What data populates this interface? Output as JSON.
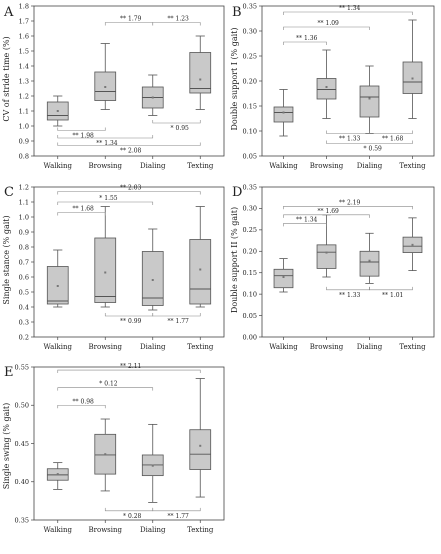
{
  "categories": [
    "Walking",
    "Browsing",
    "Dialing",
    "Texting"
  ],
  "colors": {
    "box_fill": "#c9c9c9",
    "stroke": "#555555",
    "bracket": "#888888",
    "mean": "#777777"
  },
  "chart_data": [
    {
      "type": "box",
      "panel": "A",
      "ylabel": "CV of stride time (%)",
      "ylim": [
        0.8,
        1.8
      ],
      "yticks": [
        "0.8",
        "0.9",
        "1.0",
        "1.1",
        "1.2",
        "1.3",
        "1.4",
        "1.5",
        "1.6",
        "1.7",
        "1.8"
      ],
      "yticks_num": [
        0.8,
        0.9,
        1.0,
        1.1,
        1.2,
        1.3,
        1.4,
        1.5,
        1.6,
        1.7,
        1.8
      ],
      "categories": [
        "Walking",
        "Browsing",
        "Dialing",
        "Texting"
      ],
      "boxes": [
        {
          "min": 1.0,
          "q1": 1.04,
          "median": 1.07,
          "q3": 1.16,
          "max": 1.2,
          "mean": 1.1
        },
        {
          "min": 1.11,
          "q1": 1.17,
          "median": 1.23,
          "q3": 1.36,
          "max": 1.55,
          "mean": 1.26
        },
        {
          "min": 1.07,
          "q1": 1.12,
          "median": 1.19,
          "q3": 1.26,
          "max": 1.34,
          "mean": 1.19
        },
        {
          "min": 1.11,
          "q1": 1.22,
          "median": 1.25,
          "q3": 1.49,
          "max": 1.6,
          "mean": 1.31
        }
      ],
      "brackets": [
        {
          "from": 1,
          "to": 2,
          "y": 1.69,
          "sig": "**",
          "label": "1.79",
          "side": "above"
        },
        {
          "from": 2,
          "to": 3,
          "y": 1.69,
          "sig": "**",
          "label": "1.23",
          "side": "above"
        },
        {
          "from": 2,
          "to": 3,
          "y": 1.02,
          "sig": "*",
          "label": "0.95",
          "side": "below"
        },
        {
          "from": 0,
          "to": 1,
          "y": 0.97,
          "sig": "**",
          "label": "1.98",
          "side": "below"
        },
        {
          "from": 0,
          "to": 2,
          "y": 0.92,
          "sig": "**",
          "label": "1.34",
          "side": "below"
        },
        {
          "from": 0,
          "to": 3,
          "y": 0.87,
          "sig": "**",
          "label": "2.08",
          "side": "below"
        }
      ]
    },
    {
      "type": "box",
      "panel": "B",
      "ylabel": "Double support I (% gait)",
      "ylim": [
        0.05,
        0.35
      ],
      "yticks": [
        "0.05",
        "0.10",
        "0.15",
        "0.20",
        "0.25",
        "0.30",
        "0.35"
      ],
      "yticks_num": [
        0.05,
        0.1,
        0.15,
        0.2,
        0.25,
        0.3,
        0.35
      ],
      "categories": [
        "Walking",
        "Browsing",
        "Dialing",
        "Texting"
      ],
      "boxes": [
        {
          "min": 0.09,
          "q1": 0.118,
          "median": 0.137,
          "q3": 0.148,
          "max": 0.183,
          "mean": 0.137
        },
        {
          "min": 0.125,
          "q1": 0.164,
          "median": 0.183,
          "q3": 0.205,
          "max": 0.262,
          "mean": 0.188
        },
        {
          "min": 0.095,
          "q1": 0.128,
          "median": 0.168,
          "q3": 0.19,
          "max": 0.23,
          "mean": 0.165
        },
        {
          "min": 0.125,
          "q1": 0.175,
          "median": 0.198,
          "q3": 0.238,
          "max": 0.322,
          "mean": 0.205
        }
      ],
      "brackets": [
        {
          "from": 0,
          "to": 3,
          "y": 0.338,
          "sig": "**",
          "label": "1.34",
          "side": "above"
        },
        {
          "from": 0,
          "to": 2,
          "y": 0.308,
          "sig": "**",
          "label": "1.09",
          "side": "above"
        },
        {
          "from": 0,
          "to": 1,
          "y": 0.278,
          "sig": "**",
          "label": "1.36",
          "side": "above"
        },
        {
          "from": 1,
          "to": 2,
          "y": 0.095,
          "sig": "**",
          "label": "1.33",
          "side": "below"
        },
        {
          "from": 2,
          "to": 3,
          "y": 0.095,
          "sig": "**",
          "label": "1.68",
          "side": "below"
        },
        {
          "from": 1,
          "to": 3,
          "y": 0.075,
          "sig": "*",
          "label": "0.59",
          "side": "below"
        }
      ]
    },
    {
      "type": "box",
      "panel": "C",
      "ylabel": "Single stance (% gait)",
      "ylim": [
        0.2,
        1.2
      ],
      "yticks": [
        "0.2",
        "0.3",
        "0.4",
        "0.5",
        "0.6",
        "0.7",
        "0.8",
        "0.9",
        "1.0",
        "1.1",
        "1.2"
      ],
      "yticks_num": [
        0.2,
        0.3,
        0.4,
        0.5,
        0.6,
        0.7,
        0.8,
        0.9,
        1.0,
        1.1,
        1.2
      ],
      "categories": [
        "Walking",
        "Browsing",
        "Dialing",
        "Texting"
      ],
      "boxes": [
        {
          "min": 0.4,
          "q1": 0.42,
          "median": 0.44,
          "q3": 0.67,
          "max": 0.78,
          "mean": 0.54
        },
        {
          "min": 0.4,
          "q1": 0.43,
          "median": 0.47,
          "q3": 0.86,
          "max": 1.07,
          "mean": 0.63
        },
        {
          "min": 0.38,
          "q1": 0.41,
          "median": 0.46,
          "q3": 0.77,
          "max": 0.92,
          "mean": 0.58
        },
        {
          "min": 0.4,
          "q1": 0.42,
          "median": 0.52,
          "q3": 0.85,
          "max": 1.07,
          "mean": 0.65
        }
      ],
      "brackets": [
        {
          "from": 0,
          "to": 3,
          "y": 1.17,
          "sig": "**",
          "label": "2.03",
          "side": "above"
        },
        {
          "from": 0,
          "to": 2,
          "y": 1.1,
          "sig": "*",
          "label": "1.55",
          "side": "above"
        },
        {
          "from": 0,
          "to": 1,
          "y": 1.03,
          "sig": "**",
          "label": "1.68",
          "side": "above"
        },
        {
          "from": 1,
          "to": 2,
          "y": 0.34,
          "sig": "**",
          "label": "0.99",
          "side": "below"
        },
        {
          "from": 2,
          "to": 3,
          "y": 0.34,
          "sig": "**",
          "label": "1.77",
          "side": "below"
        }
      ]
    },
    {
      "type": "box",
      "panel": "D",
      "ylabel": "Double support II (% gait)",
      "ylim": [
        0.0,
        0.35
      ],
      "yticks": [
        "0.00",
        "0.05",
        "0.10",
        "0.15",
        "0.20",
        "0.25",
        "0.30",
        "0.35"
      ],
      "yticks_num": [
        0.0,
        0.05,
        0.1,
        0.15,
        0.2,
        0.25,
        0.3,
        0.35
      ],
      "categories": [
        "Walking",
        "Browsing",
        "Dialing",
        "Texting"
      ],
      "boxes": [
        {
          "min": 0.105,
          "q1": 0.115,
          "median": 0.143,
          "q3": 0.158,
          "max": 0.183,
          "mean": 0.14
        },
        {
          "min": 0.14,
          "q1": 0.16,
          "median": 0.198,
          "q3": 0.215,
          "max": 0.285,
          "mean": 0.197
        },
        {
          "min": 0.125,
          "q1": 0.142,
          "median": 0.175,
          "q3": 0.2,
          "max": 0.242,
          "mean": 0.178
        },
        {
          "min": 0.155,
          "q1": 0.197,
          "median": 0.212,
          "q3": 0.233,
          "max": 0.278,
          "mean": 0.215
        }
      ],
      "brackets": [
        {
          "from": 0,
          "to": 3,
          "y": 0.305,
          "sig": "**",
          "label": "2.19",
          "side": "above"
        },
        {
          "from": 0,
          "to": 2,
          "y": 0.285,
          "sig": "**",
          "label": "1.69",
          "side": "above"
        },
        {
          "from": 0,
          "to": 1,
          "y": 0.265,
          "sig": "**",
          "label": "1.34",
          "side": "above"
        },
        {
          "from": 1,
          "to": 2,
          "y": 0.11,
          "sig": "**",
          "label": "1.33",
          "side": "below"
        },
        {
          "from": 2,
          "to": 3,
          "y": 0.11,
          "sig": "**",
          "label": "1.01",
          "side": "below"
        }
      ]
    },
    {
      "type": "box",
      "panel": "E",
      "ylabel": "Single swing (% gait)",
      "ylim": [
        0.35,
        0.55
      ],
      "yticks": [
        "0.35",
        "0.40",
        "0.45",
        "0.50",
        "0.55"
      ],
      "yticks_num": [
        0.35,
        0.4,
        0.45,
        0.5,
        0.55
      ],
      "categories": [
        "Walking",
        "Browsing",
        "Dialing",
        "Texting"
      ],
      "boxes": [
        {
          "min": 0.39,
          "q1": 0.402,
          "median": 0.409,
          "q3": 0.417,
          "max": 0.425,
          "mean": 0.41
        },
        {
          "min": 0.388,
          "q1": 0.41,
          "median": 0.435,
          "q3": 0.462,
          "max": 0.482,
          "mean": 0.436
        },
        {
          "min": 0.373,
          "q1": 0.408,
          "median": 0.422,
          "q3": 0.435,
          "max": 0.475,
          "mean": 0.421
        },
        {
          "min": 0.38,
          "q1": 0.416,
          "median": 0.436,
          "q3": 0.468,
          "max": 0.535,
          "mean": 0.447
        }
      ],
      "brackets": [
        {
          "from": 0,
          "to": 3,
          "y": 0.546,
          "sig": "**",
          "label": "2.11",
          "side": "above"
        },
        {
          "from": 0,
          "to": 2,
          "y": 0.523,
          "sig": "*",
          "label": "0.12",
          "side": "above"
        },
        {
          "from": 0,
          "to": 1,
          "y": 0.5,
          "sig": "**",
          "label": "0.98",
          "side": "above"
        },
        {
          "from": 1,
          "to": 2,
          "y": 0.362,
          "sig": "*",
          "label": "0.28",
          "side": "below"
        },
        {
          "from": 2,
          "to": 3,
          "y": 0.362,
          "sig": "**",
          "label": "1.77",
          "side": "below"
        }
      ]
    }
  ]
}
